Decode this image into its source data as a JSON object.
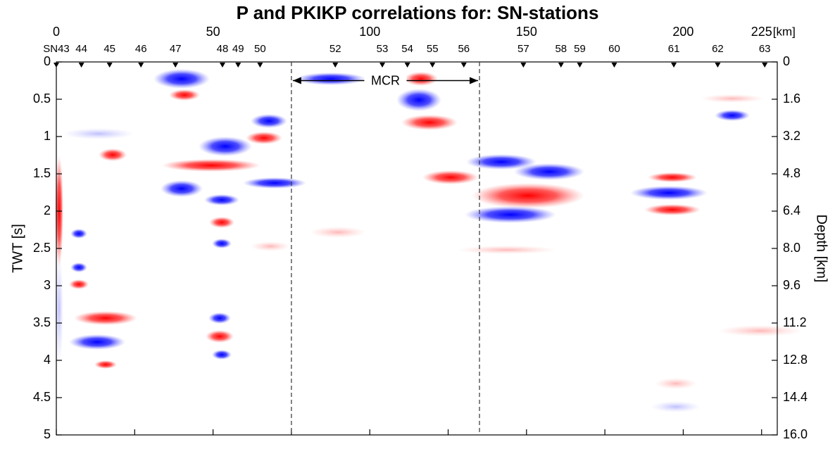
{
  "chart_data": {
    "type": "seismic-section",
    "title": "P and PKIKP correlations for: SN-stations",
    "xlabel": "[km]",
    "xlim": [
      0,
      230
    ],
    "xticks": [
      0,
      50,
      100,
      150,
      200,
      225
    ],
    "x_minor_ticks": [
      25,
      75,
      125,
      175
    ],
    "ylabel": "TWT [s]",
    "ylim": [
      0,
      5
    ],
    "yticks": [
      0,
      0.5,
      1,
      1.5,
      2,
      2.5,
      3,
      3.5,
      4,
      4.5,
      5
    ],
    "y2label": "Depth [km]",
    "y2lim": [
      0,
      16
    ],
    "y2ticks": [
      0,
      1.6,
      3.2,
      4.8,
      6.4,
      {
        "value": 8,
        "label": "8.0"
      },
      9.6,
      11.2,
      12.8,
      14.4,
      {
        "value": 16,
        "label": "16.0"
      }
    ],
    "stations": [
      {
        "name": "SN43",
        "km": 0
      },
      {
        "name": "44",
        "km": 8
      },
      {
        "name": "45",
        "km": 17
      },
      {
        "name": "46",
        "km": 27
      },
      {
        "name": "47",
        "km": 38
      },
      {
        "name": "48",
        "km": 53
      },
      {
        "name": "49",
        "km": 58
      },
      {
        "name": "50",
        "km": 65
      },
      {
        "name": "52",
        "km": 89
      },
      {
        "name": "53",
        "km": 104
      },
      {
        "name": "54",
        "km": 112
      },
      {
        "name": "55",
        "km": 120
      },
      {
        "name": "56",
        "km": 130
      },
      {
        "name": "57",
        "km": 149
      },
      {
        "name": "58",
        "km": 161
      },
      {
        "name": "59",
        "km": 167
      },
      {
        "name": "60",
        "km": 178
      },
      {
        "name": "61",
        "km": 197
      },
      {
        "name": "62",
        "km": 211
      },
      {
        "name": "63",
        "km": 226
      }
    ],
    "annotation": {
      "text": "MCR",
      "x_start": 75,
      "x_end": 135,
      "y": 0.25
    }
  }
}
